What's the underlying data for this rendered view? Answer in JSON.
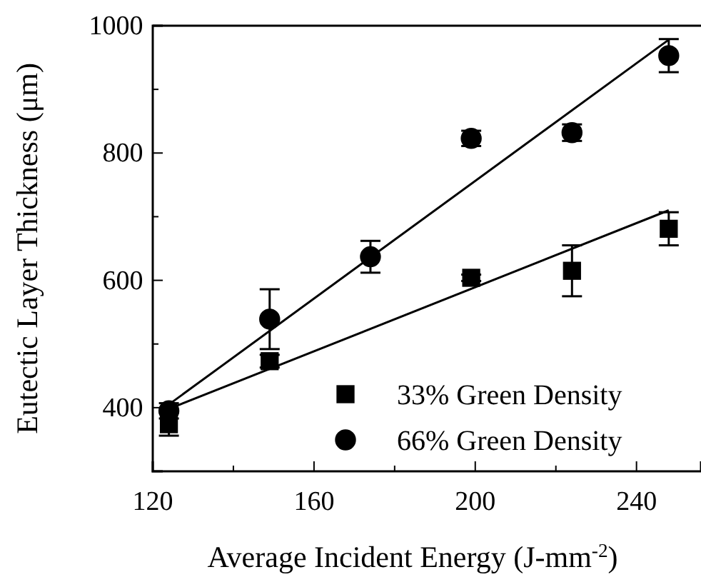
{
  "chart_data": {
    "type": "scatter",
    "xlabel": "Average Incident Energy (J-mm$^{-2}$)",
    "ylabel": "Eutectic Layer Thickness (μm)",
    "xlim": [
      120,
      256
    ],
    "ylim": [
      300,
      1000
    ],
    "xticks": [
      120,
      {
        "value": 140,
        "label": null
      },
      160,
      {
        "value": 180,
        "label": null
      },
      200,
      {
        "value": 220,
        "label": null
      },
      240
    ],
    "yticks": [
      {
        "value": 300,
        "label": null
      },
      400,
      {
        "value": 500,
        "label": null
      },
      600,
      {
        "value": 700,
        "label": null
      },
      800,
      {
        "value": 900,
        "label": null
      },
      1000
    ],
    "grid": false,
    "legend": "bottom right",
    "series": [
      {
        "name": "33% Green Density",
        "marker": "square",
        "color": "#000000",
        "x": [
          124,
          149,
          199,
          224,
          248
        ],
        "values": [
          374,
          473,
          604,
          615,
          681
        ],
        "errors": [
          18,
          10,
          5,
          40,
          26
        ]
      },
      {
        "name": "66% Green Density",
        "marker": "circle",
        "color": "#000000",
        "x": [
          124,
          149,
          174,
          199,
          224,
          248
        ],
        "values": [
          395,
          539,
          637,
          823,
          832,
          953
        ],
        "errors": [
          12,
          47,
          25,
          12,
          13,
          26
        ]
      },
      {
        "type": "line",
        "marker": "none",
        "line_style": "solid",
        "color": "#000000",
        "x": [
          124,
          248
        ],
        "values": [
          398,
          710
        ]
      },
      {
        "type": "line",
        "marker": "none",
        "line_style": "solid",
        "color": "#000000",
        "x": [
          124,
          248
        ],
        "values": [
          405,
          978
        ]
      }
    ]
  }
}
